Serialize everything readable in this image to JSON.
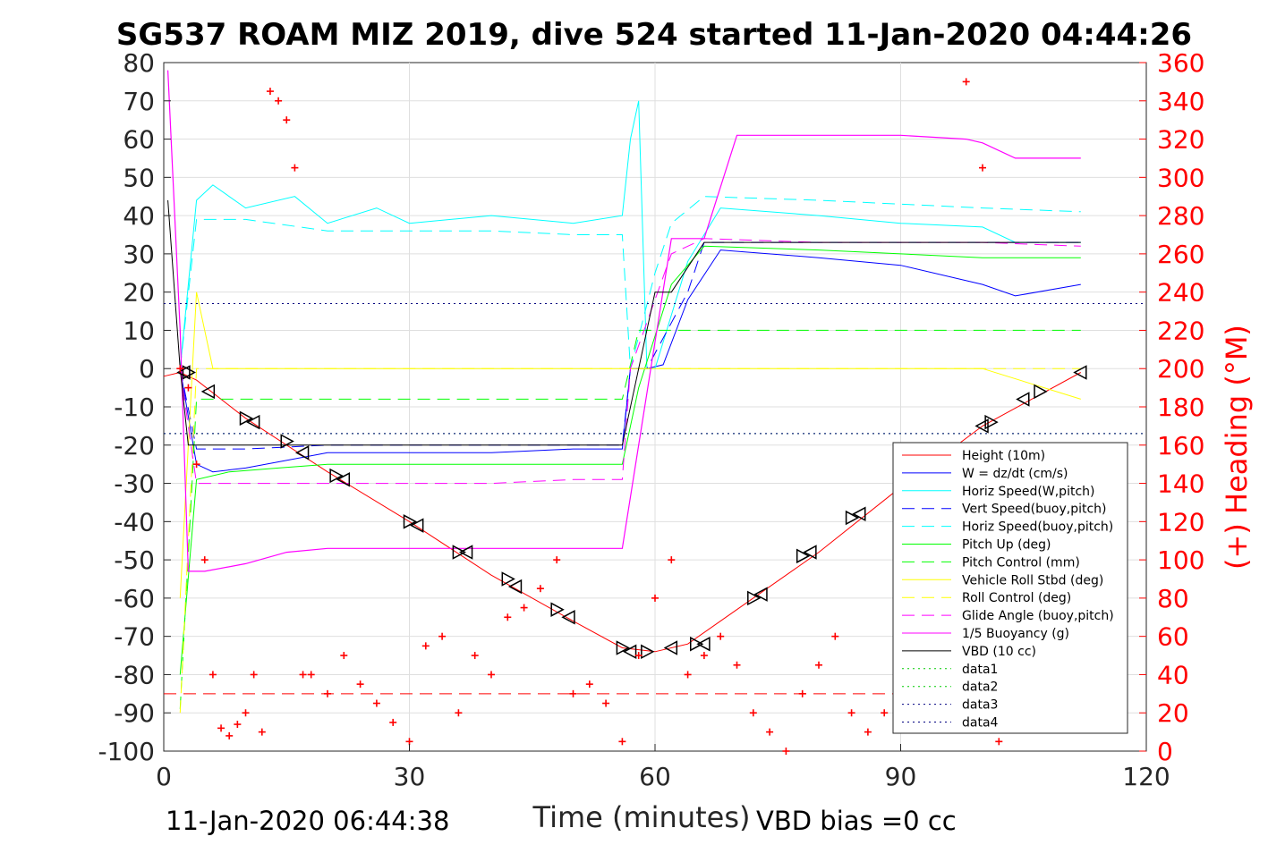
{
  "title": "SG537 ROAM MIZ 2019, dive 524 started 11-Jan-2020 04:44:26",
  "footer_left": "11-Jan-2020 06:44:38",
  "footer_right": "VBD bias =0 cc",
  "colors": {
    "height": "#ff0000",
    "w": "#0000ff",
    "horiz": "#00ffff",
    "pitch": "#00ff00",
    "roll": "#ffff00",
    "glide": "#ff00ff",
    "buoy": "#ff00ff",
    "vbd": "#000000",
    "heading": "#ff0000"
  },
  "chart_data": {
    "type": "line",
    "xlabel": "Time (minutes)",
    "ylabel_right": "(+) Heading (°M)",
    "xlim": [
      0,
      120
    ],
    "ylim_left": [
      -100,
      80
    ],
    "ylim_right": [
      0,
      360
    ],
    "xticks": [
      0,
      30,
      60,
      90,
      120
    ],
    "yticks_left": [
      80,
      70,
      60,
      50,
      40,
      30,
      20,
      10,
      0,
      -10,
      -20,
      -30,
      -40,
      -50,
      -60,
      -70,
      -80,
      -90,
      -100
    ],
    "yticks_right": [
      360,
      340,
      320,
      300,
      280,
      260,
      240,
      220,
      200,
      180,
      160,
      140,
      120,
      100,
      80,
      60,
      40,
      20,
      0
    ],
    "grid": true,
    "legend_position": "lower-right",
    "legend": [
      "Height (10m)",
      "W = dz/dt (cm/s)",
      "Horiz Speed(W,pitch)",
      "Vert Speed(buoy,pitch)",
      "Horiz Speed(buoy,pitch)",
      "Pitch Up (deg)",
      "Pitch Control (mm)",
      "Vehicle Roll Stbd (deg)",
      "Roll Control (deg)",
      "Glide Angle (buoy,pitch)",
      "1/5 Buoyancy (g)",
      "VBD (10 cc)",
      "data1",
      "data2",
      "data3",
      "data4"
    ],
    "series": [
      {
        "name": "Height (10m)",
        "x": [
          0,
          2,
          4,
          10,
          20,
          30,
          40,
          50,
          56,
          60,
          64,
          70,
          80,
          90,
          100,
          106,
          112
        ],
        "y": [
          -2,
          -1,
          -3,
          -13,
          -27,
          -40,
          -54,
          -66,
          -73,
          -74,
          -72,
          -63,
          -48,
          -31,
          -15,
          -8,
          -1
        ]
      },
      {
        "name": "W = dz/dt (cm/s)",
        "x": [
          2,
          4,
          6,
          10,
          20,
          30,
          40,
          50,
          56,
          57,
          59,
          61,
          64,
          68,
          80,
          90,
          100,
          104,
          112
        ],
        "y": [
          0,
          -25,
          -27,
          -26,
          -22,
          -22,
          -22,
          -21,
          -21,
          0,
          0,
          1,
          18,
          31,
          29,
          27,
          22,
          19,
          22
        ]
      },
      {
        "name": "Horiz Speed(W,pitch)",
        "x": [
          2,
          4,
          6,
          10,
          16,
          20,
          26,
          30,
          40,
          50,
          56,
          57,
          58,
          59,
          60,
          64,
          68,
          80,
          90,
          100,
          104,
          112
        ],
        "y": [
          0,
          44,
          48,
          42,
          45,
          38,
          42,
          38,
          40,
          38,
          40,
          60,
          70,
          0,
          0,
          28,
          42,
          40,
          38,
          37,
          33,
          33
        ]
      },
      {
        "name": "Vert Speed(buoy,pitch)",
        "x": [
          2,
          4,
          10,
          20,
          30,
          40,
          50,
          56,
          57,
          59,
          64,
          66,
          80,
          90,
          100,
          112
        ],
        "y": [
          0,
          -21,
          -21,
          -20,
          -20,
          -20,
          -20,
          -20,
          0,
          0,
          20,
          33,
          33,
          33,
          33,
          33
        ]
      },
      {
        "name": "Horiz Speed(buoy,pitch)",
        "x": [
          2,
          4,
          10,
          20,
          30,
          40,
          50,
          56,
          57,
          60,
          62,
          66,
          80,
          90,
          100,
          112
        ],
        "y": [
          0,
          39,
          39,
          36,
          36,
          36,
          35,
          35,
          0,
          25,
          38,
          45,
          44,
          43,
          42,
          41
        ]
      },
      {
        "name": "Pitch Up (deg)",
        "x": [
          2,
          4,
          8,
          14,
          20,
          30,
          40,
          50,
          56,
          58,
          62,
          66,
          80,
          90,
          100,
          112
        ],
        "y": [
          -80,
          -29,
          -27,
          -26,
          -25,
          -25,
          -25,
          -25,
          -25,
          -5,
          22,
          32,
          31,
          30,
          29,
          29
        ]
      },
      {
        "name": "Pitch Control (mm)",
        "x": [
          2,
          4,
          30,
          56,
          58,
          64,
          112
        ],
        "y": [
          -89,
          -8,
          -8,
          -8,
          10,
          10,
          10
        ]
      },
      {
        "name": "Vehicle Roll Stbd (deg)",
        "x": [
          2,
          4,
          6,
          10,
          20,
          30,
          40,
          50,
          56,
          60,
          64,
          70,
          80,
          90,
          100,
          112
        ],
        "y": [
          -60,
          20,
          0,
          0,
          0,
          0,
          0,
          0,
          0,
          0,
          0,
          0,
          0,
          0,
          0,
          -8
        ]
      },
      {
        "name": "Roll Control (deg)",
        "x": [
          2,
          4,
          56,
          60,
          112
        ],
        "y": [
          -90,
          0,
          0,
          0,
          0
        ]
      },
      {
        "name": "Glide Angle (buoy,pitch)",
        "x": [
          2,
          4,
          10,
          20,
          30,
          40,
          50,
          56,
          57,
          62,
          66,
          80,
          90,
          100,
          112
        ],
        "y": [
          0,
          -30,
          -30,
          -30,
          -30,
          -30,
          -29,
          -29,
          0,
          30,
          34,
          33,
          33,
          33,
          32
        ]
      },
      {
        "name": "1/5 Buoyancy (g)",
        "x": [
          0.5,
          2,
          3,
          5,
          10,
          15,
          20,
          30,
          40,
          50,
          56,
          62,
          66,
          70,
          80,
          90,
          98,
          100,
          104,
          112
        ],
        "y": [
          78,
          10,
          -53,
          -53,
          -51,
          -48,
          -47,
          -47,
          -47,
          -47,
          -47,
          34,
          34,
          61,
          61,
          61,
          60,
          59,
          55,
          55
        ]
      },
      {
        "name": "VBD (10 cc)",
        "x": [
          0.5,
          2,
          3,
          30,
          56,
          60,
          62,
          66,
          70,
          80,
          90,
          100,
          112
        ],
        "y": [
          44,
          0,
          -20,
          -20,
          -20,
          20,
          20,
          33,
          33,
          33,
          33,
          33,
          33
        ]
      },
      {
        "name": "data1",
        "x": [
          0,
          120
        ],
        "y": [
          17,
          17
        ]
      },
      {
        "name": "data2",
        "x": [
          0,
          120
        ],
        "y": [
          -17,
          -17
        ]
      },
      {
        "name": "data3",
        "x": [
          0,
          120
        ],
        "y": [
          17,
          17
        ]
      },
      {
        "name": "data4",
        "x": [
          0,
          120
        ],
        "y": [
          -17,
          -17
        ]
      }
    ],
    "heading_red_dashed": {
      "x": [
        0,
        112
      ],
      "y": [
        30,
        30
      ]
    },
    "heading_markers": {
      "x": [
        2,
        3,
        4,
        5,
        6,
        7,
        8,
        9,
        10,
        11,
        12,
        13,
        14,
        15,
        16,
        17,
        18,
        20,
        22,
        24,
        26,
        28,
        30,
        32,
        34,
        36,
        38,
        40,
        42,
        44,
        46,
        48,
        50,
        52,
        54,
        56,
        58,
        60,
        62,
        64,
        66,
        68,
        70,
        72,
        74,
        76,
        78,
        80,
        82,
        84,
        86,
        88,
        90,
        92,
        94,
        96,
        98,
        100,
        102
      ],
      "y": [
        200,
        190,
        150,
        100,
        40,
        12,
        8,
        14,
        20,
        40,
        10,
        345,
        340,
        330,
        305,
        40,
        40,
        30,
        50,
        35,
        25,
        15,
        5,
        55,
        60,
        20,
        50,
        40,
        70,
        75,
        85,
        100,
        30,
        35,
        25,
        5,
        50,
        80,
        100,
        40,
        50,
        60,
        45,
        20,
        10,
        0,
        30,
        45,
        60,
        20,
        10,
        20,
        50,
        40,
        30,
        20,
        350,
        305,
        5
      ]
    },
    "triangle_markers": {
      "x": [
        2.5,
        3,
        5.5,
        10,
        11,
        15,
        17,
        21,
        22,
        30,
        31,
        36,
        37,
        42,
        43,
        48,
        49.5,
        56,
        57,
        59,
        62,
        65,
        66,
        72,
        73,
        78,
        79,
        84,
        85,
        90,
        100,
        101,
        105,
        107,
        112
      ],
      "y": [
        -1,
        -1,
        -6,
        -13,
        -14,
        -19,
        -22,
        -28,
        -29,
        -40,
        -41,
        -48,
        -48,
        -55,
        -57,
        -63,
        -65,
        -73,
        -74,
        -74,
        -73,
        -72,
        -72,
        -60,
        -59,
        -49,
        -48,
        -39,
        -38,
        -31,
        -15,
        -14,
        -8,
        -6,
        -1
      ]
    }
  }
}
